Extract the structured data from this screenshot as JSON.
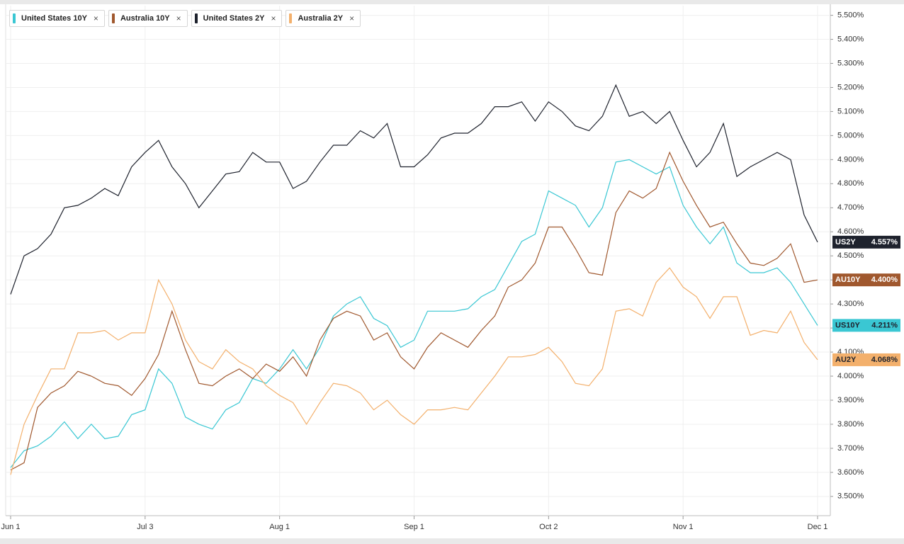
{
  "chart_data": {
    "type": "line",
    "categories": [
      "Jun 1",
      null,
      null,
      null,
      null,
      null,
      null,
      null,
      null,
      null,
      "Jul 3",
      null,
      null,
      null,
      null,
      null,
      null,
      null,
      null,
      null,
      "Aug 1",
      null,
      null,
      null,
      null,
      null,
      null,
      null,
      null,
      null,
      "Sep 1",
      null,
      null,
      null,
      null,
      null,
      null,
      null,
      null,
      null,
      "Oct 2",
      null,
      null,
      null,
      null,
      null,
      null,
      null,
      null,
      null,
      "Nov 1",
      null,
      null,
      null,
      null,
      null,
      null,
      null,
      null,
      null,
      "Dec 1"
    ],
    "series": [
      {
        "name": "United States 10Y",
        "short_name": "US10Y",
        "color": "#3ac7d3",
        "values": [
          3.62,
          3.69,
          3.71,
          3.75,
          3.81,
          3.74,
          3.8,
          3.74,
          3.75,
          3.84,
          3.86,
          4.03,
          3.97,
          3.83,
          3.8,
          3.78,
          3.86,
          3.89,
          3.99,
          3.97,
          4.03,
          4.11,
          4.03,
          4.12,
          4.25,
          4.3,
          4.33,
          4.24,
          4.21,
          4.12,
          4.15,
          4.27,
          4.27,
          4.27,
          4.28,
          4.33,
          4.36,
          4.46,
          4.56,
          4.59,
          4.77,
          4.74,
          4.71,
          4.62,
          4.7,
          4.89,
          4.9,
          4.87,
          4.84,
          4.87,
          4.71,
          4.62,
          4.55,
          4.62,
          4.47,
          4.43,
          4.43,
          4.45,
          4.39,
          4.3,
          4.211
        ],
        "value_labels": [
          null,
          null,
          null,
          null,
          null,
          null,
          null,
          null,
          null,
          null,
          null,
          null,
          null,
          null,
          null,
          null,
          null,
          null,
          null,
          null,
          null,
          null,
          null,
          null,
          null,
          null,
          null,
          null,
          null,
          null,
          null,
          null,
          null,
          null,
          null,
          null,
          null,
          null,
          null,
          null,
          null,
          null,
          null,
          null,
          null,
          null,
          null,
          null,
          null,
          null,
          null,
          null,
          null,
          null,
          null,
          null,
          null,
          null,
          null,
          null,
          "4.211%"
        ]
      },
      {
        "name": "Australia 10Y",
        "short_name": "AU10Y",
        "color": "#a0582e",
        "values": [
          3.61,
          3.64,
          3.87,
          3.93,
          3.96,
          4.02,
          4.0,
          3.97,
          3.96,
          3.92,
          3.99,
          4.09,
          4.27,
          4.11,
          3.97,
          3.96,
          4.0,
          4.03,
          3.99,
          4.05,
          4.02,
          4.08,
          4.0,
          4.15,
          4.24,
          4.27,
          4.25,
          4.15,
          4.18,
          4.08,
          4.03,
          4.12,
          4.18,
          4.15,
          4.12,
          4.19,
          4.25,
          4.37,
          4.4,
          4.47,
          4.62,
          4.62,
          4.53,
          4.43,
          4.42,
          4.68,
          4.77,
          4.74,
          4.78,
          4.93,
          4.81,
          4.71,
          4.62,
          4.64,
          4.55,
          4.47,
          4.46,
          4.49,
          4.55,
          4.39,
          4.4
        ],
        "value_labels": [
          null,
          null,
          null,
          null,
          null,
          null,
          null,
          null,
          null,
          null,
          null,
          null,
          null,
          null,
          null,
          null,
          null,
          null,
          null,
          null,
          null,
          null,
          null,
          null,
          null,
          null,
          null,
          null,
          null,
          null,
          null,
          null,
          null,
          null,
          null,
          null,
          null,
          null,
          null,
          null,
          null,
          null,
          null,
          null,
          null,
          null,
          null,
          null,
          null,
          null,
          null,
          null,
          null,
          null,
          null,
          null,
          null,
          null,
          null,
          null,
          "4.400%"
        ]
      },
      {
        "name": "United States 2Y",
        "short_name": "US2Y",
        "color": "#1e222d",
        "values": [
          4.34,
          4.5,
          4.53,
          4.59,
          4.7,
          4.71,
          4.74,
          4.78,
          4.75,
          4.87,
          4.93,
          4.98,
          4.87,
          4.8,
          4.7,
          4.77,
          4.84,
          4.85,
          4.93,
          4.89,
          4.89,
          4.78,
          4.81,
          4.89,
          4.96,
          4.96,
          5.02,
          4.99,
          5.05,
          4.87,
          4.87,
          4.92,
          4.99,
          5.01,
          5.01,
          5.05,
          5.12,
          5.12,
          5.14,
          5.06,
          5.14,
          5.1,
          5.04,
          5.02,
          5.08,
          5.21,
          5.08,
          5.1,
          5.05,
          5.1,
          4.98,
          4.87,
          4.93,
          5.05,
          4.83,
          4.87,
          4.9,
          4.93,
          4.9,
          4.67,
          4.557
        ],
        "value_labels": [
          null,
          null,
          null,
          null,
          null,
          null,
          null,
          null,
          null,
          null,
          null,
          null,
          null,
          null,
          null,
          null,
          null,
          null,
          null,
          null,
          null,
          null,
          null,
          null,
          null,
          null,
          null,
          null,
          null,
          null,
          null,
          null,
          null,
          null,
          null,
          null,
          null,
          null,
          null,
          null,
          null,
          null,
          null,
          null,
          null,
          null,
          null,
          null,
          null,
          null,
          null,
          null,
          null,
          null,
          null,
          null,
          null,
          null,
          null,
          null,
          "4.557%"
        ]
      },
      {
        "name": "Australia 2Y",
        "short_name": "AU2Y",
        "color": "#f3b06c",
        "values": [
          3.59,
          3.8,
          3.92,
          4.03,
          4.03,
          4.18,
          4.18,
          4.19,
          4.15,
          4.18,
          4.18,
          4.4,
          4.3,
          4.15,
          4.06,
          4.03,
          4.11,
          4.06,
          4.03,
          3.96,
          3.92,
          3.89,
          3.8,
          3.89,
          3.97,
          3.96,
          3.93,
          3.86,
          3.9,
          3.84,
          3.8,
          3.86,
          3.86,
          3.87,
          3.86,
          3.93,
          4.0,
          4.08,
          4.08,
          4.09,
          4.12,
          4.06,
          3.97,
          3.96,
          4.03,
          4.27,
          4.28,
          4.25,
          4.39,
          4.45,
          4.37,
          4.33,
          4.24,
          4.33,
          4.33,
          4.17,
          4.19,
          4.18,
          4.27,
          4.14,
          4.068
        ],
        "value_labels": [
          null,
          null,
          null,
          null,
          null,
          null,
          null,
          null,
          null,
          null,
          null,
          null,
          null,
          null,
          null,
          null,
          null,
          null,
          null,
          null,
          null,
          null,
          null,
          null,
          null,
          null,
          null,
          null,
          null,
          null,
          null,
          null,
          null,
          null,
          null,
          null,
          null,
          null,
          null,
          null,
          null,
          null,
          null,
          null,
          null,
          null,
          null,
          null,
          null,
          null,
          null,
          null,
          null,
          null,
          null,
          null,
          null,
          null,
          null,
          null,
          "4.068%"
        ]
      }
    ],
    "ylim": [
      3.42,
      5.54
    ],
    "yticks": [
      {
        "value": 3.5,
        "label": "3.500%"
      },
      {
        "value": 3.6,
        "label": "3.600%"
      },
      {
        "value": 3.7,
        "label": "3.700%"
      },
      {
        "value": 3.8,
        "label": "3.800%"
      },
      {
        "value": 3.9,
        "label": "3.900%"
      },
      {
        "value": 4.0,
        "label": "4.000%"
      },
      {
        "value": 4.1,
        "label": "4.100%"
      },
      {
        "value": 4.2,
        "label": "4.200%"
      },
      {
        "value": 4.3,
        "label": "4.300%"
      },
      {
        "value": 4.4,
        "label": "4.400%"
      },
      {
        "value": 4.5,
        "label": "4.500%"
      },
      {
        "value": 4.6,
        "label": "4.600%"
      },
      {
        "value": 4.7,
        "label": "4.700%"
      },
      {
        "value": 4.8,
        "label": "4.800%"
      },
      {
        "value": 4.9,
        "label": "4.900%"
      },
      {
        "value": 5.0,
        "label": "5.000%"
      },
      {
        "value": 5.1,
        "label": "5.100%"
      },
      {
        "value": 5.2,
        "label": "5.200%"
      },
      {
        "value": 5.3,
        "label": "5.300%"
      },
      {
        "value": 5.4,
        "label": "5.400%"
      },
      {
        "value": 5.5,
        "label": "5.500%"
      }
    ],
    "y_axis_side": "right",
    "grid": true,
    "legend": "top-left"
  }
}
